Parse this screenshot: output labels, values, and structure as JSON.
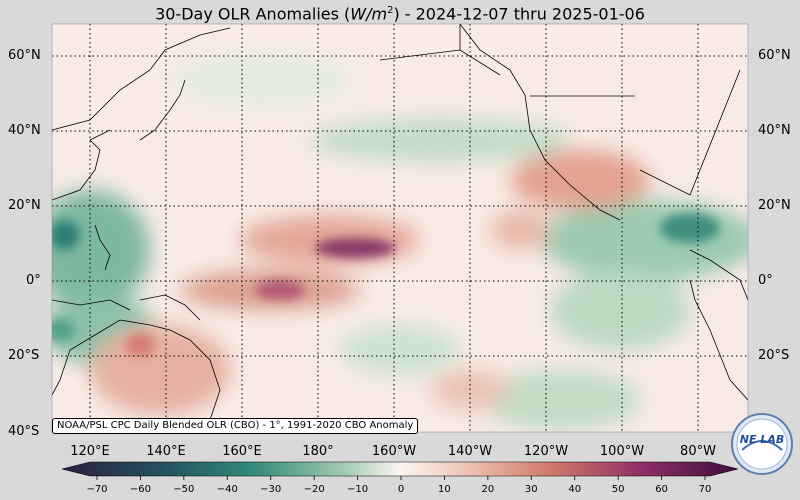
{
  "title": "30-Day OLR Anomalies (W/m²) - 2024-12-07 thru 2025-01-06",
  "title_parts": {
    "pre": "30-Day OLR Anomalies (",
    "unit_var": "W/m",
    "unit_exp": "2",
    "post": ") - 2024-12-07 thru 2025-01-06"
  },
  "lat_labels": [
    "60°N",
    "40°N",
    "20°N",
    "0°",
    "20°S",
    "40°S"
  ],
  "lon_labels": [
    "120°E",
    "140°E",
    "160°E",
    "180°",
    "160°W",
    "140°W",
    "120°W",
    "100°W",
    "80°W"
  ],
  "credit": "NOAA/PSL CPC Daily Blended OLR (CBO) - 1°, 1991-2020 CBO Anomaly",
  "colorbar": {
    "ticks": [
      "−70",
      "−60",
      "−50",
      "−40",
      "−30",
      "−20",
      "−10",
      "0",
      "10",
      "20",
      "30",
      "40",
      "50",
      "60",
      "70"
    ],
    "colors": [
      "#2c1e3d",
      "#244e5f",
      "#1e7a6f",
      "#3d9a82",
      "#7cba9c",
      "#b6d6bd",
      "#e4efe2",
      "#fbf3ee",
      "#f1d2c4",
      "#e5a58e",
      "#d47a6c",
      "#b35464",
      "#8c2f68",
      "#5e1a55",
      "#3b0f3d"
    ]
  },
  "logo_text": "NE LAB",
  "anomaly_features": [
    {
      "name": "positive-central-pacific-north",
      "value": 65
    },
    {
      "name": "positive-central-pacific-equator",
      "value": 60
    },
    {
      "name": "negative-western-pacific",
      "value": -55
    },
    {
      "name": "negative-caribbean",
      "value": -55
    }
  ]
}
